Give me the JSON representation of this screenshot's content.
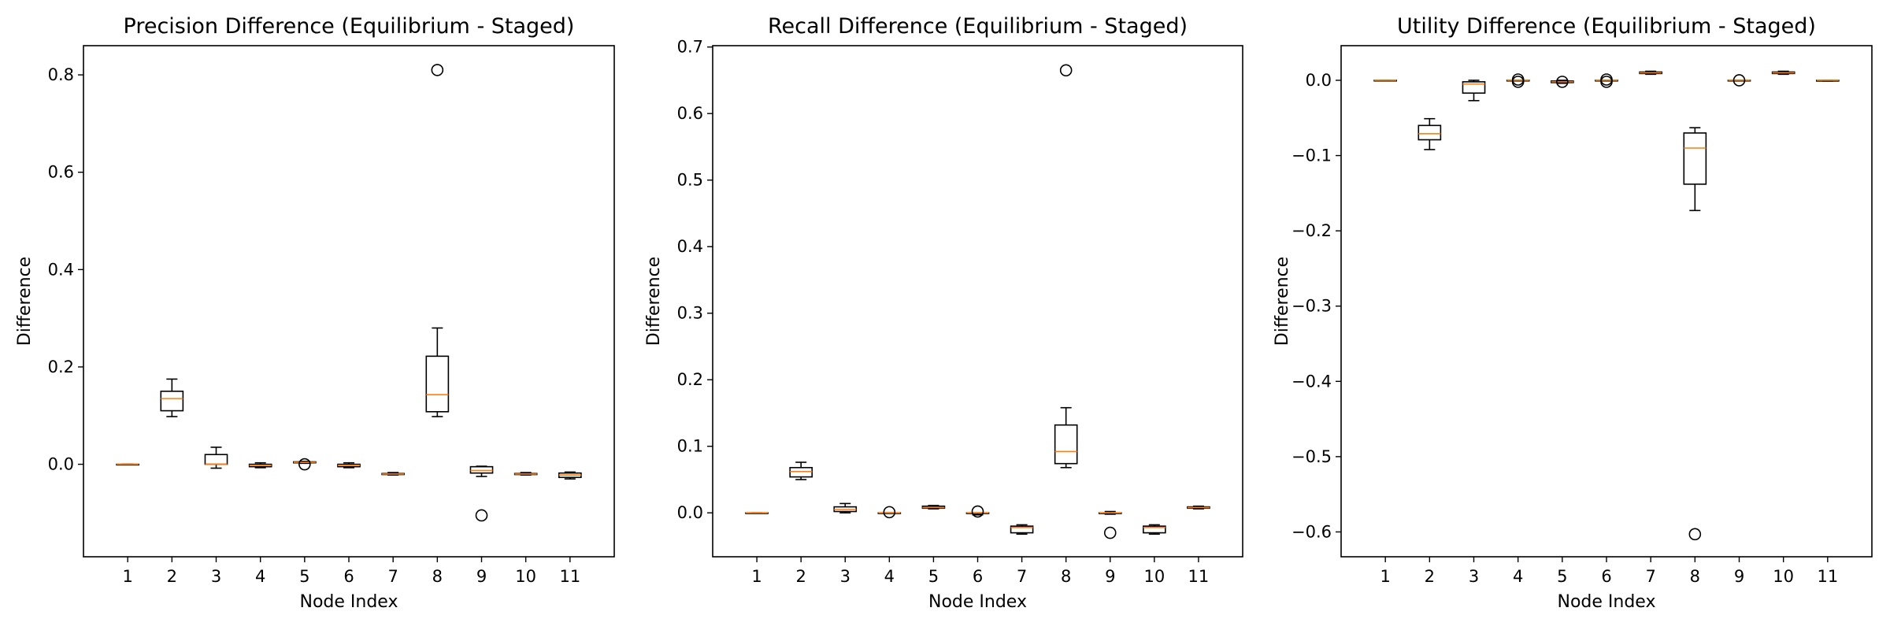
{
  "chart_data": [
    {
      "type": "box",
      "title": "Precision Difference (Equilibrium - Staged)",
      "xlabel": "Node Index",
      "ylabel": "Difference",
      "categories": [
        "1",
        "2",
        "3",
        "4",
        "5",
        "6",
        "7",
        "8",
        "9",
        "10",
        "11"
      ],
      "ylim": [
        -0.19,
        0.86
      ],
      "yticks": [
        0.0,
        0.2,
        0.4,
        0.6,
        0.8
      ],
      "ytick_labels": [
        "0.0",
        "0.2",
        "0.4",
        "0.6",
        "0.8"
      ],
      "boxes": [
        {
          "whislo": 0.0,
          "q1": 0.0,
          "med": 0.0,
          "q3": 0.0,
          "whishi": 0.0,
          "fliers": []
        },
        {
          "whislo": 0.098,
          "q1": 0.11,
          "med": 0.135,
          "q3": 0.15,
          "whishi": 0.175,
          "fliers": []
        },
        {
          "whislo": -0.008,
          "q1": 0.0,
          "med": 0.0,
          "q3": 0.02,
          "whishi": 0.035,
          "fliers": []
        },
        {
          "whislo": -0.007,
          "q1": -0.005,
          "med": -0.002,
          "q3": 0.0,
          "whishi": 0.003,
          "fliers": []
        },
        {
          "whislo": 0.002,
          "q1": 0.003,
          "med": 0.004,
          "q3": 0.005,
          "whishi": 0.006,
          "fliers": [
            0.0
          ]
        },
        {
          "whislo": -0.007,
          "q1": -0.005,
          "med": -0.002,
          "q3": 0.0,
          "whishi": 0.003,
          "fliers": []
        },
        {
          "whislo": -0.022,
          "q1": -0.021,
          "med": -0.02,
          "q3": -0.019,
          "whishi": -0.017,
          "fliers": []
        },
        {
          "whislo": 0.098,
          "q1": 0.108,
          "med": 0.143,
          "q3": 0.222,
          "whishi": 0.28,
          "fliers": [
            0.81
          ]
        },
        {
          "whislo": -0.025,
          "q1": -0.018,
          "med": -0.013,
          "q3": -0.005,
          "whishi": -0.004,
          "fliers": [
            -0.105
          ]
        },
        {
          "whislo": -0.022,
          "q1": -0.021,
          "med": -0.02,
          "q3": -0.019,
          "whishi": -0.017,
          "fliers": []
        },
        {
          "whislo": -0.03,
          "q1": -0.027,
          "med": -0.022,
          "q3": -0.018,
          "whishi": -0.016,
          "fliers": []
        }
      ]
    },
    {
      "type": "box",
      "title": "Recall Difference (Equilibrium - Staged)",
      "xlabel": "Node Index",
      "ylabel": "Difference",
      "categories": [
        "1",
        "2",
        "3",
        "4",
        "5",
        "6",
        "7",
        "8",
        "9",
        "10",
        "11"
      ],
      "ylim": [
        -0.066,
        0.702
      ],
      "yticks": [
        0.0,
        0.1,
        0.2,
        0.3,
        0.4,
        0.5,
        0.6,
        0.7
      ],
      "ytick_labels": [
        "0.0",
        "0.1",
        "0.2",
        "0.3",
        "0.4",
        "0.5",
        "0.6",
        "0.7"
      ],
      "boxes": [
        {
          "whislo": 0.0,
          "q1": 0.0,
          "med": 0.0,
          "q3": 0.0,
          "whishi": 0.0,
          "fliers": []
        },
        {
          "whislo": 0.05,
          "q1": 0.054,
          "med": 0.062,
          "q3": 0.068,
          "whishi": 0.076,
          "fliers": []
        },
        {
          "whislo": 0.0,
          "q1": 0.002,
          "med": 0.005,
          "q3": 0.009,
          "whishi": 0.014,
          "fliers": []
        },
        {
          "whislo": 0.0,
          "q1": 0.0,
          "med": 0.0,
          "q3": 0.0,
          "whishi": 0.0,
          "fliers": [
            0.001
          ]
        },
        {
          "whislo": 0.006,
          "q1": 0.007,
          "med": 0.008,
          "q3": 0.01,
          "whishi": 0.011,
          "fliers": []
        },
        {
          "whislo": -0.003,
          "q1": -0.001,
          "med": 0.0,
          "q3": 0.0,
          "whishi": 0.0,
          "fliers": [
            0.002
          ]
        },
        {
          "whislo": -0.032,
          "q1": -0.03,
          "med": -0.022,
          "q3": -0.02,
          "whishi": -0.018,
          "fliers": []
        },
        {
          "whislo": 0.068,
          "q1": 0.074,
          "med": 0.092,
          "q3": 0.132,
          "whishi": 0.158,
          "fliers": [
            0.665
          ]
        },
        {
          "whislo": -0.002,
          "q1": -0.001,
          "med": 0.0,
          "q3": 0.0,
          "whishi": 0.002,
          "fliers": [
            -0.03
          ]
        },
        {
          "whislo": -0.032,
          "q1": -0.03,
          "med": -0.022,
          "q3": -0.02,
          "whishi": -0.018,
          "fliers": []
        },
        {
          "whislo": 0.006,
          "q1": 0.007,
          "med": 0.008,
          "q3": 0.009,
          "whishi": 0.01,
          "fliers": []
        }
      ]
    },
    {
      "type": "box",
      "title": "Utility Difference (Equilibrium - Staged)",
      "xlabel": "Node Index",
      "ylabel": "Difference",
      "categories": [
        "1",
        "2",
        "3",
        "4",
        "5",
        "6",
        "7",
        "8",
        "9",
        "10",
        "11"
      ],
      "ylim": [
        -0.633,
        0.046
      ],
      "yticks": [
        0.0,
        -0.1,
        -0.2,
        -0.3,
        -0.4,
        -0.5,
        -0.6
      ],
      "ytick_labels": [
        "0.0",
        "−0.1",
        "−0.2",
        "−0.3",
        "−0.4",
        "−0.5",
        "−0.6"
      ],
      "boxes": [
        {
          "whislo": 0.0,
          "q1": 0.0,
          "med": 0.0,
          "q3": 0.0,
          "whishi": 0.0,
          "fliers": []
        },
        {
          "whislo": -0.092,
          "q1": -0.079,
          "med": -0.071,
          "q3": -0.06,
          "whishi": -0.051,
          "fliers": []
        },
        {
          "whislo": -0.027,
          "q1": -0.017,
          "med": -0.005,
          "q3": -0.002,
          "whishi": 0.0,
          "fliers": []
        },
        {
          "whislo": 0.0,
          "q1": 0.0,
          "med": 0.0,
          "q3": 0.0,
          "whishi": 0.0,
          "fliers": [
            -0.002,
            0.001
          ]
        },
        {
          "whislo": -0.004,
          "q1": -0.003,
          "med": -0.002,
          "q3": -0.001,
          "whishi": 0.0,
          "fliers": [
            -0.002
          ]
        },
        {
          "whislo": 0.0,
          "q1": 0.0,
          "med": 0.0,
          "q3": 0.0,
          "whishi": 0.0,
          "fliers": [
            -0.002,
            0.001
          ]
        },
        {
          "whislo": 0.008,
          "q1": 0.009,
          "med": 0.01,
          "q3": 0.011,
          "whishi": 0.012,
          "fliers": []
        },
        {
          "whislo": -0.173,
          "q1": -0.138,
          "med": -0.09,
          "q3": -0.07,
          "whishi": -0.063,
          "fliers": [
            -0.603
          ]
        },
        {
          "whislo": 0.0,
          "q1": 0.0,
          "med": 0.0,
          "q3": 0.0,
          "whishi": 0.0,
          "fliers": [
            0.0
          ]
        },
        {
          "whislo": 0.008,
          "q1": 0.009,
          "med": 0.01,
          "q3": 0.011,
          "whishi": 0.012,
          "fliers": []
        },
        {
          "whislo": -0.001,
          "q1": -0.001,
          "med": 0.0,
          "q3": 0.0,
          "whishi": 0.0,
          "fliers": []
        }
      ]
    }
  ],
  "colors": {
    "box": "#000000",
    "median": "#ff7f0e",
    "flier": "#000000",
    "background": "#ffffff"
  }
}
